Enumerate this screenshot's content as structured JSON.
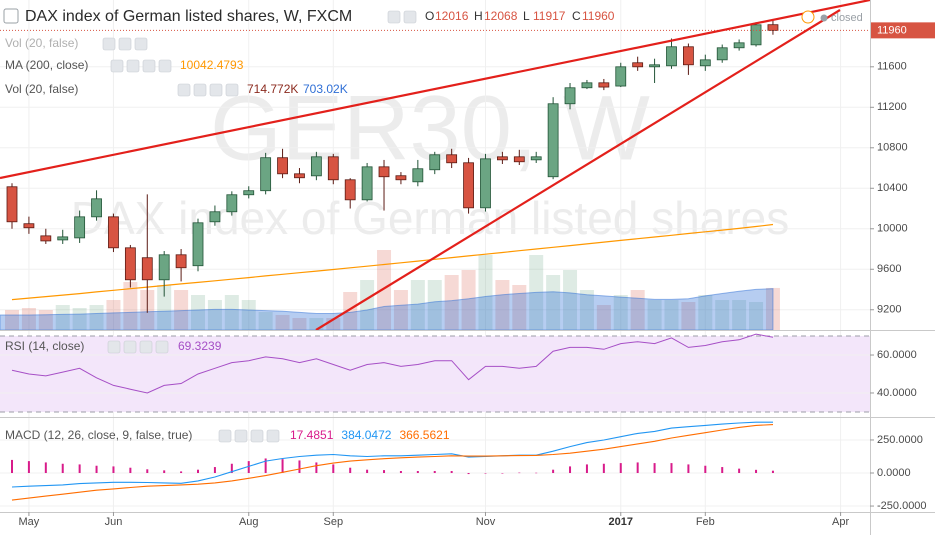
{
  "chart_data": [
    {
      "type": "candlestick",
      "title": "DAX index of German listed shares, W, FXCM",
      "watermark": "GER30, W",
      "watermark_subtitle": "DAX index of German listed shares",
      "status": "closed",
      "ohlc_letters": [
        "O",
        "H",
        "L",
        "C"
      ],
      "categories": [
        null,
        "May",
        null,
        null,
        null,
        null,
        "Jun",
        null,
        null,
        null,
        null,
        null,
        null,
        null,
        "Aug",
        null,
        null,
        null,
        null,
        "Sep",
        null,
        null,
        null,
        null,
        null,
        null,
        null,
        null,
        "Nov",
        null,
        null,
        null,
        null,
        null,
        null,
        null,
        "2017",
        null,
        null,
        null,
        null,
        "Feb",
        null,
        null,
        null,
        null,
        null,
        null,
        null,
        "Apr"
      ],
      "open": [
        10415,
        10050,
        9930,
        9890,
        9910,
        10118,
        10118,
        9812,
        9714,
        9496,
        9743,
        9635,
        10069,
        10168,
        10336,
        10376,
        10702,
        10543,
        10523,
        10711,
        10484,
        10286,
        10612,
        10524,
        10464,
        10583,
        10731,
        10652,
        10207,
        10711,
        10711,
        10681,
        10514,
        11235,
        11393,
        11442,
        11410,
        11640,
        11600,
        11610,
        11798,
        11610,
        11669,
        11788,
        11817,
        12016,
        null,
        null,
        null,
        null
      ],
      "high": [
        10450,
        10120,
        10000,
        9990,
        10180,
        10380,
        10150,
        9840,
        10340,
        9780,
        9800,
        10100,
        10230,
        10370,
        10420,
        10750,
        10790,
        10600,
        10760,
        10740,
        10500,
        10650,
        10680,
        10560,
        10680,
        10760,
        10790,
        10700,
        10740,
        10760,
        10780,
        10760,
        11300,
        11440,
        11470,
        11480,
        11640,
        11700,
        11680,
        11880,
        11830,
        11720,
        11820,
        11870,
        12040,
        12068,
        null,
        null,
        null,
        null
      ],
      "low": [
        10000,
        9950,
        9850,
        9850,
        9860,
        10080,
        9770,
        9420,
        9170,
        9330,
        9480,
        9580,
        10030,
        10130,
        10300,
        10340,
        10500,
        10450,
        10480,
        10440,
        10200,
        10270,
        10180,
        10440,
        10420,
        10540,
        10600,
        10150,
        10170,
        10640,
        10630,
        10650,
        10490,
        11180,
        11380,
        11370,
        11400,
        11560,
        11440,
        11580,
        11520,
        11560,
        11640,
        11760,
        11800,
        11917,
        null,
        null,
        null,
        null
      ],
      "close": [
        10069,
        10010,
        9880,
        9920,
        10118,
        10296,
        9812,
        9496,
        9496,
        9743,
        9615,
        10059,
        10168,
        10336,
        10376,
        10702,
        10543,
        10504,
        10711,
        10484,
        10286,
        10612,
        10514,
        10484,
        10593,
        10731,
        10652,
        10207,
        10691,
        10681,
        10662,
        10711,
        11235,
        11393,
        11442,
        11400,
        11600,
        11600,
        11620,
        11798,
        11620,
        11669,
        11788,
        11837,
        12015,
        11960,
        null,
        null,
        null,
        null
      ],
      "up_color": "#6ba583",
      "down_color": "#d75442",
      "ylim": [
        9000,
        12260
      ],
      "yticks": [
        9200,
        9600,
        10000,
        10400,
        10800,
        11200,
        11600
      ],
      "y2lim": [
        0,
        5610
      ],
      "grid": true,
      "series": [
        {
          "name": "MA (200, close)",
          "color": "#ff9800",
          "values": [
            9300,
            9315,
            9330,
            9345,
            9360,
            9376,
            9392,
            9408,
            9424,
            9440,
            9455,
            9470,
            9486,
            9502,
            9518,
            9534,
            9550,
            9566,
            9582,
            9598,
            9614,
            9630,
            9647,
            9664,
            9681,
            9698,
            9715,
            9732,
            9749,
            9766,
            9783,
            9800,
            9817,
            9834,
            9851,
            9868,
            9885,
            9902,
            9919,
            9936,
            9953,
            9970,
            9987,
            10004,
            10022,
            10042.4793,
            null,
            null,
            null,
            null
          ]
        },
        {
          "name": "Vol (20, false)",
          "type": "volume",
          "axis": "y2",
          "color": "#8b2a1e",
          "values": [
            340,
            374,
            340,
            425,
            374,
            425,
            510,
            816,
            680,
            765,
            680,
            595,
            510,
            595,
            510,
            306,
            255,
            204,
            204,
            204,
            646,
            850,
            1360,
            680,
            850,
            850,
            935,
            1020,
            1275,
            850,
            765,
            1275,
            935,
            1020,
            680,
            425,
            595,
            680,
            510,
            510,
            476,
            595,
            510,
            510,
            476,
            714.772,
            null,
            null,
            null,
            null
          ],
          "value_labels": [
            null,
            null,
            null,
            null,
            null,
            null,
            null,
            null,
            null,
            null,
            null,
            null,
            null,
            null,
            null,
            null,
            null,
            null,
            null,
            null,
            null,
            null,
            null,
            null,
            null,
            null,
            null,
            null,
            null,
            null,
            null,
            null,
            null,
            null,
            null,
            null,
            null,
            null,
            null,
            null,
            null,
            null,
            null,
            null,
            null,
            "714.772K",
            null,
            null,
            null,
            null
          ]
        },
        {
          "name": "Vol (20, false)",
          "type": "area",
          "axis": "y2",
          "color": "#2f6fd6",
          "values": [
            255,
            255,
            260,
            265,
            270,
            280,
            290,
            300,
            310,
            320,
            330,
            340,
            350,
            350,
            340,
            330,
            320,
            300,
            280,
            280,
            300,
            340,
            400,
            420,
            440,
            480,
            500,
            530,
            570,
            600,
            620,
            640,
            650,
            630,
            600,
            580,
            560,
            540,
            520,
            520,
            530,
            580,
            620,
            660,
            690,
            703.02,
            null,
            null,
            null,
            null
          ],
          "value_labels": [
            null,
            null,
            null,
            null,
            null,
            null,
            null,
            null,
            null,
            null,
            null,
            null,
            null,
            null,
            null,
            null,
            null,
            null,
            null,
            null,
            null,
            null,
            null,
            null,
            null,
            null,
            null,
            null,
            null,
            null,
            null,
            null,
            null,
            null,
            null,
            null,
            null,
            null,
            null,
            null,
            null,
            null,
            null,
            null,
            null,
            "703.02K",
            null,
            null,
            null,
            null
          ]
        }
      ]
    },
    {
      "type": "line",
      "ylim": [
        28.4,
        71.6
      ],
      "yticks": [
        {
          "value": 60,
          "label": "60.0000"
        },
        {
          "value": 40,
          "label": "40.0000"
        }
      ],
      "band": [
        30,
        70
      ],
      "band_color": "#f3e6fa",
      "series": [
        {
          "name": "RSI (14, close)",
          "color": "#a64fc6",
          "values": [
            52,
            50,
            49,
            51,
            53,
            48,
            44,
            42,
            40,
            44,
            45,
            50,
            53,
            56,
            57,
            59,
            58,
            56,
            58,
            55,
            52,
            55,
            56,
            54,
            55,
            57,
            57,
            47,
            54,
            54,
            53,
            54,
            62,
            64,
            64,
            63,
            66,
            67,
            66,
            69,
            64,
            65,
            67,
            68,
            71,
            69.3239,
            null,
            null,
            null,
            null
          ]
        }
      ]
    },
    {
      "type": "macd",
      "title": "MACD (12, 26, close, 9, false, true)",
      "ylim": [
        -295,
        401
      ],
      "yticks": [
        {
          "value": 250,
          "label": "250.0000"
        },
        {
          "value": 0,
          "label": "0.0000"
        },
        {
          "value": -250,
          "label": "-250.0000"
        }
      ],
      "series": [
        {
          "type": "bar",
          "color": "#d81b8a",
          "values": [
            99,
            90,
            80,
            70,
            65,
            55,
            50,
            40,
            28,
            20,
            12,
            25,
            45,
            70,
            90,
            110,
            105,
            95,
            80,
            65,
            40,
            25,
            22,
            15,
            15,
            15,
            15,
            -8,
            -3,
            0,
            3,
            2,
            25,
            50,
            65,
            70,
            75,
            80,
            75,
            75,
            65,
            55,
            45,
            33,
            24,
            17.4851,
            null,
            null,
            null,
            null
          ]
        },
        {
          "type": "line",
          "color": "#2196f3",
          "values": [
            -106,
            -100,
            -95,
            -90,
            -80,
            -75,
            -70,
            -70,
            -72,
            -75,
            -78,
            -60,
            -30,
            10,
            50,
            90,
            110,
            125,
            135,
            140,
            130,
            125,
            130,
            130,
            135,
            140,
            145,
            120,
            125,
            130,
            135,
            135,
            165,
            200,
            230,
            250,
            275,
            300,
            315,
            340,
            350,
            360,
            370,
            378,
            384,
            384.0472,
            null,
            null,
            null,
            null
          ]
        },
        {
          "type": "line",
          "color": "#ff6d00",
          "values": [
            -205,
            -190,
            -175,
            -160,
            -145,
            -130,
            -120,
            -110,
            -100,
            -95,
            -90,
            -85,
            -75,
            -60,
            -40,
            -20,
            5,
            30,
            55,
            75,
            90,
            100,
            108,
            115,
            120,
            125,
            130,
            128,
            128,
            130,
            132,
            133,
            140,
            150,
            165,
            180,
            200,
            220,
            240,
            265,
            285,
            305,
            325,
            345,
            360,
            366.5621,
            null,
            null,
            null,
            null
          ]
        }
      ]
    }
  ]
}
